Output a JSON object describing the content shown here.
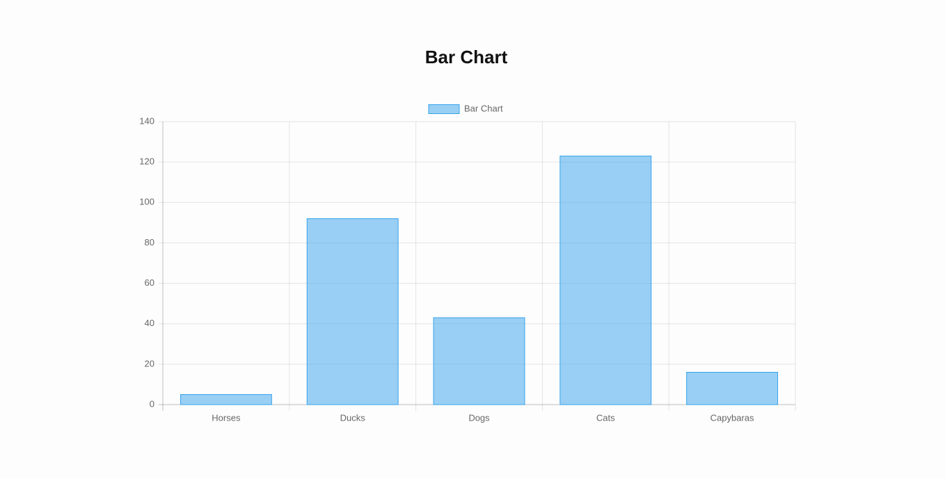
{
  "heading": "Bar Chart",
  "chart_data": {
    "type": "bar",
    "categories": [
      "Horses",
      "Ducks",
      "Dogs",
      "Cats",
      "Capybaras"
    ],
    "series": [
      {
        "name": "Bar Chart",
        "color": "#36a2eb",
        "values": [
          5,
          92,
          43,
          123,
          16
        ]
      }
    ],
    "ylim": [
      0,
      140
    ],
    "yticks": [
      0,
      20,
      40,
      60,
      80,
      100,
      120,
      140
    ],
    "grid": true,
    "legend": "top"
  }
}
